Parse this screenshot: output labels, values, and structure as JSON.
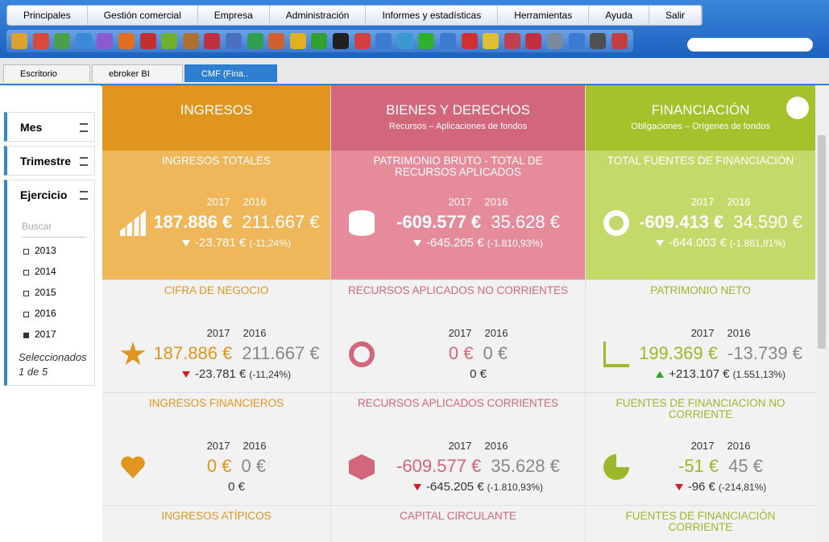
{
  "menu": [
    "Principales",
    "Gestión comercial",
    "Empresa",
    "Administración",
    "Informes y estadísticas",
    "Herramientas",
    "Ayuda",
    "Salir"
  ],
  "tabs": [
    "Escritorio",
    "ebroker BI",
    "CMF (Fina.."
  ],
  "sidebar": {
    "filters": [
      "Mes",
      "Trimestre",
      "Ejercicio"
    ],
    "search": "Buscar",
    "years": [
      "2013",
      "2014",
      "2015",
      "2016",
      "2017"
    ],
    "selected": [
      "Seleccionados",
      "1 de 5"
    ]
  },
  "columns": [
    {
      "title": "INGRESOS",
      "color": "#e0951e",
      "body": "#efb65a",
      "text": "#e0951e"
    },
    {
      "title": "BIENES Y DERECHOS",
      "subtitle": "Recursos – Aplicaciones de fondos",
      "color": "#d2667a",
      "body": "#e68b9a",
      "text": "#d2667a"
    },
    {
      "title": "FINANCIACIÓN",
      "subtitle": "Obligaciones – Orígenes de fondos",
      "color": "#a4c22b",
      "body": "#c3d96a",
      "text": "#9ab82a"
    }
  ],
  "cards": [
    [
      {
        "title": "INGRESOS TOTALES",
        "years": [
          "2017",
          "2016"
        ],
        "current": "187.886 €",
        "previous": "211.667 €",
        "delta": "-23.781 €",
        "pct": "(-11,24%)",
        "trend": "down",
        "icon": "bars"
      },
      {
        "title": "PATRIMONIO BRUTO - TOTAL DE RECURSOS APLICADOS",
        "years": [
          "2017",
          "2016"
        ],
        "current": "-609.577 €",
        "previous": "35.628 €",
        "delta": "-645.205 €",
        "pct": "(-1.810,93%)",
        "trend": "down",
        "icon": "db"
      },
      {
        "title": "TOTAL FUENTES DE FINANCIACIÓN",
        "years": [
          "2017",
          "2016"
        ],
        "current": "-609.413 €",
        "previous": "34.590 €",
        "delta": "-644.003 €",
        "pct": "(-1.861,81%)",
        "trend": "down",
        "icon": "ring"
      }
    ],
    [
      {
        "title": "CIFRA DE NEGOCIO",
        "years": [
          "2017",
          "2016"
        ],
        "current": "187.886 €",
        "previous": "211.667 €",
        "delta": "-23.781 €",
        "pct": "(-11,24%)",
        "trend": "down",
        "icon": "star"
      },
      {
        "title": "RECURSOS APLICADOS NO CORRIENTES",
        "years": [
          "2017",
          "2016"
        ],
        "current": "0 €",
        "previous": "0 €",
        "delta": "0 €",
        "icon": "compass"
      },
      {
        "title": "PATRIMONIO NETO",
        "years": [
          "2017",
          "2016"
        ],
        "current": "199.369 €",
        "previous": "-13.739 €",
        "delta": "+213.107 €",
        "pct": "(1.551,13%)",
        "trend": "up",
        "icon": "chart"
      }
    ],
    [
      {
        "title": "INGRESOS FINANCIEROS",
        "years": [
          "2017",
          "2016"
        ],
        "current": "0 €",
        "previous": "0 €",
        "delta": "0 €",
        "icon": "heart"
      },
      {
        "title": "RECURSOS APLICADOS CORRIENTES",
        "years": [
          "2017",
          "2016"
        ],
        "current": "-609.577 €",
        "previous": "35.628 €",
        "delta": "-645.205 €",
        "pct": "(-1.810,93%)",
        "trend": "down",
        "icon": "cube"
      },
      {
        "title": "FUENTES DE FINANCIACION NO CORRIENTE",
        "years": [
          "2017",
          "2016"
        ],
        "current": "-51 €",
        "previous": "45 €",
        "delta": "-96 €",
        "pct": "(-214,81%)",
        "trend": "down",
        "icon": "pie"
      }
    ],
    [
      {
        "title": "INGRESOS ATÍPICOS"
      },
      {
        "title": "CAPITAL CIRCULANTE"
      },
      {
        "title": "FUENTES DE FINANCIACIÓN CORRIENTE"
      }
    ]
  ]
}
